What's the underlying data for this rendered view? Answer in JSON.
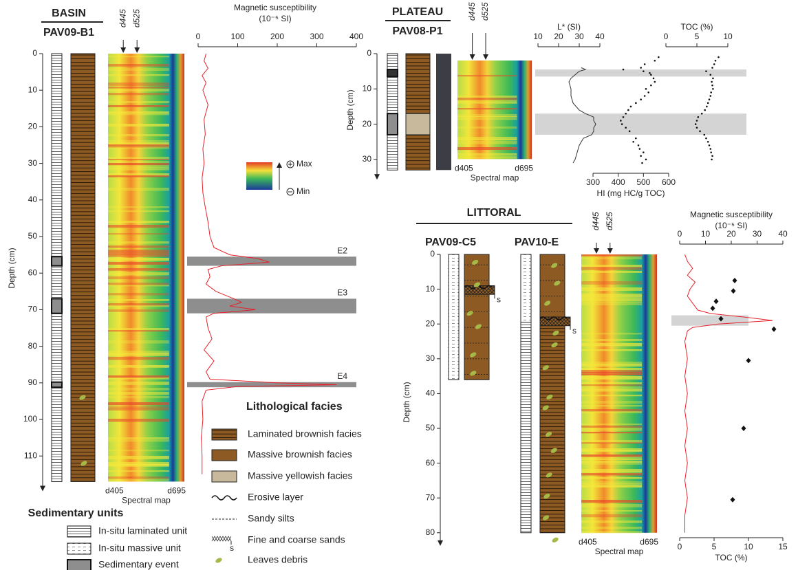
{
  "basin": {
    "title": "BASIN",
    "core": "PAV09-B1",
    "depth_label": "Depth (cm)",
    "depth_lim": [
      0,
      117
    ],
    "depth_ticks": [
      0,
      10,
      20,
      30,
      40,
      50,
      60,
      70,
      80,
      90,
      100,
      110
    ],
    "spectral": {
      "start": "d405",
      "end": "d695",
      "arrows": [
        "d445",
        "d525"
      ],
      "label": "Spectral map"
    },
    "ms": {
      "title": "Magnetic susceptibility",
      "unit": "(10⁻⁵ SI)",
      "xlim": [
        0,
        400
      ],
      "xticks": [
        0,
        100,
        200,
        300,
        400
      ],
      "color": "#e8202a",
      "depth": [
        0,
        2,
        4,
        6,
        8,
        10,
        14,
        18,
        22,
        26,
        30,
        34,
        38,
        42,
        46,
        50,
        53,
        55,
        56,
        57,
        58,
        59,
        61,
        63,
        65,
        67,
        68,
        69,
        70,
        71,
        72,
        75,
        78,
        81,
        84,
        87,
        89,
        90,
        90.5,
        91,
        92,
        95,
        100,
        105,
        110,
        115
      ],
      "values": [
        20,
        15,
        25,
        10,
        20,
        12,
        25,
        15,
        18,
        12,
        15,
        10,
        12,
        18,
        25,
        30,
        40,
        80,
        150,
        180,
        60,
        25,
        30,
        20,
        45,
        90,
        110,
        80,
        145,
        40,
        20,
        25,
        35,
        15,
        40,
        20,
        30,
        200,
        350,
        100,
        20,
        10,
        12,
        8,
        10,
        10
      ]
    },
    "events": [
      {
        "label": "E2",
        "top": 55.5,
        "bottom": 58
      },
      {
        "label": "E3",
        "top": 67,
        "bottom": 71
      },
      {
        "label": "E4",
        "top": 89.8,
        "bottom": 91.2
      }
    ]
  },
  "scale": {
    "max": "Max",
    "min": "Min"
  },
  "plateau": {
    "title": "PLATEAU",
    "core": "PAV08-P1",
    "depth_label": "Depth (cm)",
    "depth_lim": [
      0,
      33
    ],
    "depth_ticks": [
      0,
      10,
      20,
      30
    ],
    "spectral": {
      "start": "d405",
      "end": "d695",
      "arrows": [
        "d445",
        "d525"
      ],
      "label": "Spectral map"
    },
    "bands": [
      [
        4.5,
        6.5
      ],
      [
        17,
        23
      ]
    ],
    "lstar": {
      "title": "L* (SI)",
      "xlim": [
        10,
        40
      ],
      "xticks": [
        10,
        20,
        30,
        40
      ],
      "depth": [
        4,
        4.5,
        5,
        6,
        7,
        8,
        10,
        12,
        14,
        16,
        17,
        18,
        19,
        20,
        21,
        22,
        23,
        24,
        26,
        28,
        30,
        31
      ],
      "values": [
        31,
        33,
        30,
        28,
        26,
        25,
        26,
        26,
        27,
        30,
        33,
        37,
        37,
        38,
        37,
        37,
        36,
        32,
        30,
        29,
        28,
        27
      ]
    },
    "hi": {
      "title": "HI (mg HC/g TOC)",
      "xlim": [
        300,
        600
      ],
      "xticks": [
        300,
        400,
        500,
        600
      ],
      "depth": [
        1,
        2,
        3,
        4,
        4.5,
        5,
        5.5,
        6,
        7,
        8,
        9,
        10,
        11,
        12,
        13,
        14,
        15,
        16,
        17,
        18,
        19,
        20,
        21,
        22,
        24,
        25,
        26,
        27,
        28,
        29,
        30,
        31
      ],
      "values": [
        560,
        545,
        505,
        490,
        420,
        500,
        525,
        530,
        540,
        545,
        530,
        510,
        520,
        505,
        490,
        470,
        450,
        440,
        430,
        420,
        410,
        415,
        430,
        445,
        470,
        460,
        480,
        485,
        500,
        490,
        510,
        495
      ]
    },
    "toc": {
      "title": "TOC (%)",
      "xlim": [
        0,
        10
      ],
      "xticks": [
        0,
        5,
        10
      ],
      "depth": [
        1,
        2,
        3,
        4,
        5,
        6,
        7,
        8,
        9,
        10,
        11,
        12,
        13,
        14,
        15,
        16,
        17,
        18,
        19,
        20,
        21,
        22,
        23,
        24,
        25,
        26,
        27,
        28,
        29,
        30
      ],
      "values": [
        8.5,
        8,
        7.8,
        7.5,
        6.5,
        7.2,
        7.6,
        7.4,
        7.5,
        7.6,
        7.3,
        7.2,
        7,
        6.8,
        6.6,
        6.3,
        5.8,
        5.2,
        5,
        4.8,
        5,
        5.5,
        6.2,
        6.5,
        6.8,
        7,
        7.2,
        7.3,
        7.5,
        7.4
      ]
    }
  },
  "littoral": {
    "title": "LITTORAL",
    "depth_label": "Depth (cm)",
    "depth_lim": [
      0,
      81
    ],
    "depth_ticks": [
      0,
      10,
      20,
      30,
      40,
      50,
      60,
      70,
      80
    ],
    "cores": [
      {
        "name": "PAV09-C5",
        "length": 36,
        "sands": [
          9,
          11.5
        ]
      },
      {
        "name": "PAV10-E",
        "length": 80,
        "sands": [
          18,
          20.5
        ],
        "massive_bottom": 19.5
      }
    ],
    "sand_label": "s",
    "spectral": {
      "start": "d405",
      "end": "d695",
      "arrows": [
        "d445",
        "d525"
      ],
      "label": "Spectral map"
    },
    "band": [
      17.5,
      20.5
    ],
    "ms": {
      "title": "Magnetic susceptibility",
      "unit": "(10⁻⁵ SI)",
      "xlim": [
        0,
        40
      ],
      "xticks": [
        0,
        10,
        20,
        30,
        40
      ],
      "color": "#e8202a",
      "depth": [
        0,
        2,
        4,
        6,
        8,
        10,
        12,
        14,
        16,
        17,
        18,
        19,
        20,
        21,
        22,
        25,
        30,
        35,
        40,
        45,
        50,
        55,
        60,
        65,
        70,
        75,
        80
      ],
      "values": [
        2,
        3,
        5,
        3,
        6,
        4,
        3,
        5,
        7,
        12,
        25,
        36,
        15,
        5,
        3,
        2,
        3,
        2,
        3,
        2,
        3,
        2,
        3,
        2,
        3,
        2,
        2
      ]
    },
    "toc": {
      "title": "TOC (%)",
      "xlim": [
        0,
        15
      ],
      "xticks": [
        0,
        5,
        10,
        15
      ],
      "depth": [
        7.5,
        10.5,
        13.5,
        15.5,
        18.5,
        21.5,
        30.5,
        50,
        70.5
      ],
      "values": [
        8,
        7.8,
        5.3,
        4.8,
        6,
        13.7,
        10,
        9.3,
        7.7
      ]
    }
  },
  "legend": {
    "facies_title": "Lithological facies",
    "facies": [
      "Laminated brownish facies",
      "Massive brownish facies",
      "Massive yellowish facies",
      "Erosive layer",
      "Sandy silts",
      "Fine and coarse sands",
      "Leaves debris"
    ],
    "sand_mark": "s",
    "units_title": "Sedimentary units",
    "units": [
      "In-situ laminated unit",
      "In-situ massive unit",
      "Sedimentary event"
    ]
  }
}
